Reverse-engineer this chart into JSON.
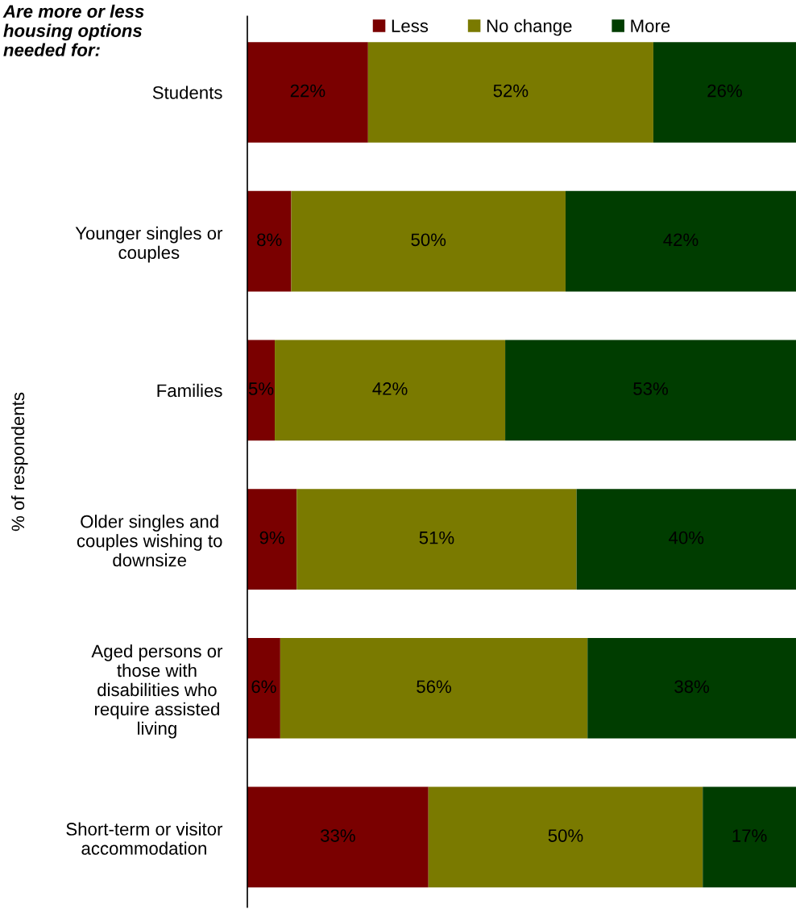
{
  "chart_data": {
    "type": "bar",
    "orientation": "horizontal",
    "stacked": true,
    "title": "Are more or less\nhousing options\nneeded for:",
    "ylabel": "% of respondents",
    "categories": [
      "Students",
      "Younger singles or\ncouples",
      "Families",
      "Older singles and\ncouples wishing to\ndownsize",
      "Aged persons or\nthose with\ndisabilities who\nrequire assisted\nliving",
      "Short-term or visitor\naccommodation"
    ],
    "series": [
      {
        "name": "Less",
        "color": "#7a0000",
        "values": [
          22,
          8,
          5,
          9,
          6,
          33
        ],
        "value_labels": [
          "22%",
          "8%",
          "5%",
          "9%",
          "6%",
          "33%"
        ]
      },
      {
        "name": "No change",
        "color": "#7a7a00",
        "values": [
          52,
          50,
          42,
          51,
          56,
          50
        ],
        "value_labels": [
          "52%",
          "50%",
          "42%",
          "51%",
          "56%",
          "50%"
        ]
      },
      {
        "name": "More",
        "color": "#003d00",
        "values": [
          26,
          42,
          53,
          40,
          38,
          17
        ],
        "value_labels": [
          "26%",
          "42%",
          "53%",
          "40%",
          "38%",
          "17%"
        ]
      }
    ],
    "legend": "top",
    "grid": false,
    "tick_labels": "y"
  }
}
